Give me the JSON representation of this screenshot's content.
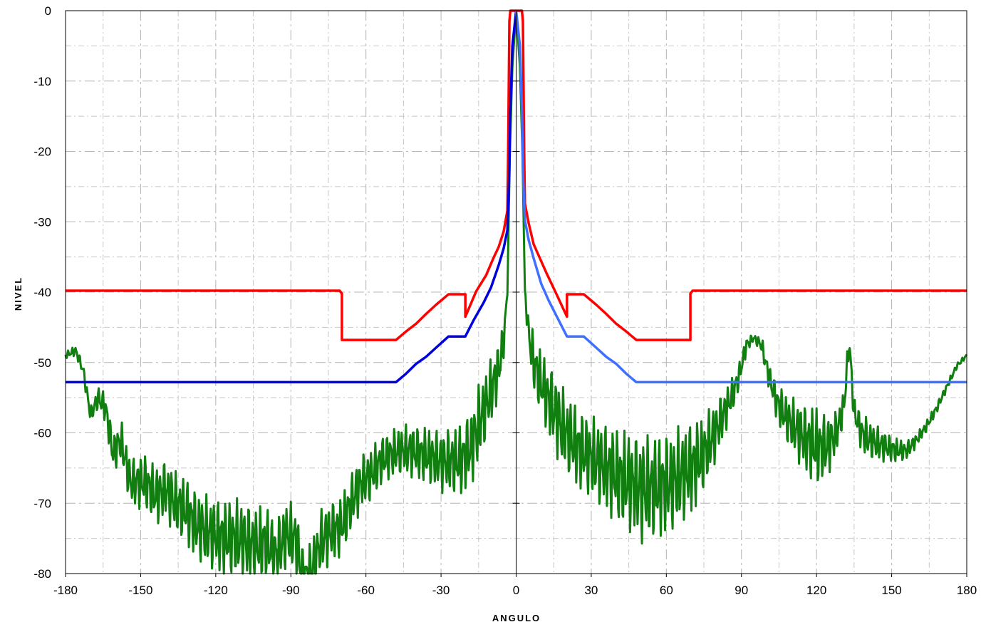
{
  "chart_data": {
    "type": "line",
    "xlabel": "ANGULO",
    "ylabel": "NIVEL",
    "xlim": [
      -180,
      180
    ],
    "ylim": [
      -80,
      0
    ],
    "x_ticks": [
      -180,
      -150,
      -120,
      -90,
      -60,
      -30,
      0,
      30,
      60,
      90,
      120,
      150,
      180
    ],
    "y_ticks": [
      0,
      -10,
      -20,
      -30,
      -40,
      -50,
      -60,
      -70,
      -80
    ],
    "grid": true,
    "legend": "none",
    "colors": {
      "red_mask": "#ff0000",
      "blue_mask_left": "#0000dd",
      "blue_mask_right": "#3f6fff",
      "measured": "#107f10"
    },
    "series": [
      {
        "color": "#ff0000",
        "points": [
          [
            -180,
            -39.8
          ],
          [
            -70.5,
            -39.8
          ],
          [
            -69.6,
            -40.2
          ],
          [
            -69.6,
            -46.8
          ],
          [
            -48,
            -46.8
          ],
          [
            -44,
            -45.6
          ],
          [
            -40,
            -44.5
          ],
          [
            -36,
            -43.1
          ],
          [
            -32,
            -41.8
          ],
          [
            -27,
            -40.3
          ],
          [
            -20.3,
            -40.3
          ],
          [
            -20.3,
            -43.5
          ],
          [
            -16,
            -39.9
          ],
          [
            -12,
            -37.6
          ],
          [
            -9,
            -35.1
          ],
          [
            -7,
            -33.6
          ],
          [
            -5,
            -31.4
          ],
          [
            -3.5,
            -28.4
          ],
          [
            -3.2,
            -20
          ],
          [
            -2.7,
            -1.5
          ],
          [
            -2.3,
            0
          ],
          [
            2.3,
            0
          ],
          [
            2.7,
            -1.5
          ],
          [
            3.2,
            -20
          ],
          [
            3.5,
            -27.4
          ],
          [
            5,
            -30.2
          ],
          [
            7,
            -33.2
          ],
          [
            9,
            -34.8
          ],
          [
            12,
            -37.2
          ],
          [
            16,
            -40.2
          ],
          [
            20.3,
            -43.5
          ],
          [
            20.3,
            -40.3
          ],
          [
            27,
            -40.3
          ],
          [
            32,
            -41.8
          ],
          [
            36,
            -43.1
          ],
          [
            40,
            -44.5
          ],
          [
            44,
            -45.6
          ],
          [
            48,
            -46.8
          ],
          [
            69.6,
            -46.8
          ],
          [
            69.6,
            -40.2
          ],
          [
            70.5,
            -39.8
          ],
          [
            180,
            -39.8
          ]
        ]
      },
      {
        "color": "#0000dd",
        "points": [
          [
            -180,
            -52.8
          ],
          [
            -48,
            -52.8
          ],
          [
            -44,
            -51.6
          ],
          [
            -40,
            -50.2
          ],
          [
            -36,
            -49.2
          ],
          [
            -32,
            -47.9
          ],
          [
            -27,
            -46.3
          ],
          [
            -20.3,
            -46.3
          ],
          [
            -17,
            -44
          ],
          [
            -13,
            -41.5
          ],
          [
            -10,
            -39.3
          ],
          [
            -7,
            -36.2
          ],
          [
            -5,
            -33.8
          ],
          [
            -3.5,
            -31.2
          ],
          [
            -2.8,
            -24
          ],
          [
            -2.3,
            -14
          ],
          [
            -1.5,
            -5
          ],
          [
            0,
            0
          ]
        ]
      },
      {
        "color": "#3f6fff",
        "points": [
          [
            0,
            0
          ],
          [
            1.5,
            -5
          ],
          [
            2.3,
            -14
          ],
          [
            2.8,
            -24
          ],
          [
            3.5,
            -29.8
          ],
          [
            5,
            -32.6
          ],
          [
            7,
            -35.2
          ],
          [
            10,
            -38.8
          ],
          [
            13,
            -41.2
          ],
          [
            17,
            -44
          ],
          [
            20.3,
            -46.3
          ],
          [
            27,
            -46.3
          ],
          [
            32,
            -47.9
          ],
          [
            36,
            -49.2
          ],
          [
            40,
            -50.2
          ],
          [
            44,
            -51.6
          ],
          [
            48,
            -52.8
          ],
          [
            180,
            -52.8
          ]
        ]
      }
    ],
    "measured_series": {
      "color": "#107f10",
      "anchors": [
        [
          -180,
          -49
        ],
        [
          -176,
          -48.3
        ],
        [
          -173,
          -51
        ],
        [
          -170,
          -57.5
        ],
        [
          -167,
          -55
        ],
        [
          -164,
          -56.5
        ],
        [
          -161,
          -63
        ],
        [
          -158,
          -61
        ],
        [
          -154,
          -67
        ],
        [
          -148,
          -67
        ],
        [
          -144,
          -69
        ],
        [
          -140,
          -68
        ],
        [
          -136,
          -70
        ],
        [
          -132,
          -71
        ],
        [
          -128,
          -73
        ],
        [
          -124,
          -74
        ],
        [
          -120,
          -74.5
        ],
        [
          -116,
          -75
        ],
        [
          -112,
          -75
        ],
        [
          -108,
          -75.5
        ],
        [
          -104,
          -76
        ],
        [
          -100,
          -75.5
        ],
        [
          -96,
          -77.5
        ],
        [
          -92,
          -74.5
        ],
        [
          -88,
          -75
        ],
        [
          -85,
          -81
        ],
        [
          -82,
          -80
        ],
        [
          -78,
          -75.5
        ],
        [
          -74,
          -74
        ],
        [
          -70,
          -73.5
        ],
        [
          -66,
          -70
        ],
        [
          -62,
          -67
        ],
        [
          -58,
          -66
        ],
        [
          -54,
          -64
        ],
        [
          -50,
          -63
        ],
        [
          -46,
          -62.5
        ],
        [
          -42,
          -62.5
        ],
        [
          -38,
          -63
        ],
        [
          -34,
          -63.5
        ],
        [
          -30,
          -64
        ],
        [
          -26,
          -64
        ],
        [
          -22,
          -64
        ],
        [
          -18,
          -62
        ],
        [
          -14,
          -58
        ],
        [
          -10,
          -54
        ],
        [
          -7,
          -51
        ],
        [
          -5,
          -47
        ],
        [
          -3.5,
          -40
        ],
        [
          -2.5,
          -20
        ],
        [
          -1.5,
          -8
        ],
        [
          0,
          0
        ],
        [
          1.5,
          -8
        ],
        [
          2.5,
          -20
        ],
        [
          3.5,
          -40
        ],
        [
          5,
          -46
        ],
        [
          7,
          -50
        ],
        [
          10,
          -53
        ],
        [
          14,
          -56
        ],
        [
          18,
          -59
        ],
        [
          22,
          -61
        ],
        [
          26,
          -62.5
        ],
        [
          30,
          -63.5
        ],
        [
          34,
          -64.5
        ],
        [
          38,
          -65.5
        ],
        [
          42,
          -66.5
        ],
        [
          46,
          -67
        ],
        [
          50,
          -68
        ],
        [
          54,
          -68
        ],
        [
          58,
          -67.5
        ],
        [
          62,
          -67
        ],
        [
          66,
          -66
        ],
        [
          70,
          -65
        ],
        [
          74,
          -63.5
        ],
        [
          78,
          -61
        ],
        [
          82,
          -58
        ],
        [
          86,
          -55
        ],
        [
          89,
          -52
        ],
        [
          92,
          -47.5
        ],
        [
          95,
          -46.5
        ],
        [
          98,
          -47.5
        ],
        [
          101,
          -52
        ],
        [
          104,
          -55.5
        ],
        [
          108,
          -58
        ],
        [
          112,
          -59.5
        ],
        [
          116,
          -61
        ],
        [
          120,
          -62
        ],
        [
          124,
          -62
        ],
        [
          128,
          -60
        ],
        [
          131,
          -56
        ],
        [
          133,
          -47
        ],
        [
          135,
          -57
        ],
        [
          138,
          -60
        ],
        [
          141,
          -61
        ],
        [
          144,
          -61.5
        ],
        [
          148,
          -62
        ],
        [
          152,
          -62.5
        ],
        [
          156,
          -62.5
        ],
        [
          160,
          -61
        ],
        [
          164,
          -59
        ],
        [
          168,
          -56.5
        ],
        [
          172,
          -53.5
        ],
        [
          176,
          -50.5
        ],
        [
          180,
          -49
        ]
      ],
      "ripple_envelope": [
        [
          -180,
          0.5
        ],
        [
          -170,
          1.2
        ],
        [
          -160,
          3
        ],
        [
          -150,
          4
        ],
        [
          -130,
          5
        ],
        [
          -110,
          6
        ],
        [
          -90,
          5
        ],
        [
          -70,
          4.5
        ],
        [
          -50,
          3.5
        ],
        [
          -30,
          4.5
        ],
        [
          -15,
          6
        ],
        [
          -6,
          4
        ],
        [
          -3,
          0
        ],
        [
          3,
          0
        ],
        [
          6,
          4
        ],
        [
          15,
          6
        ],
        [
          30,
          6
        ],
        [
          50,
          8
        ],
        [
          70,
          7
        ],
        [
          85,
          3
        ],
        [
          95,
          0.5
        ],
        [
          105,
          3
        ],
        [
          120,
          6
        ],
        [
          132,
          2
        ],
        [
          140,
          3
        ],
        [
          150,
          2
        ],
        [
          160,
          1
        ],
        [
          180,
          0.3
        ]
      ]
    }
  }
}
